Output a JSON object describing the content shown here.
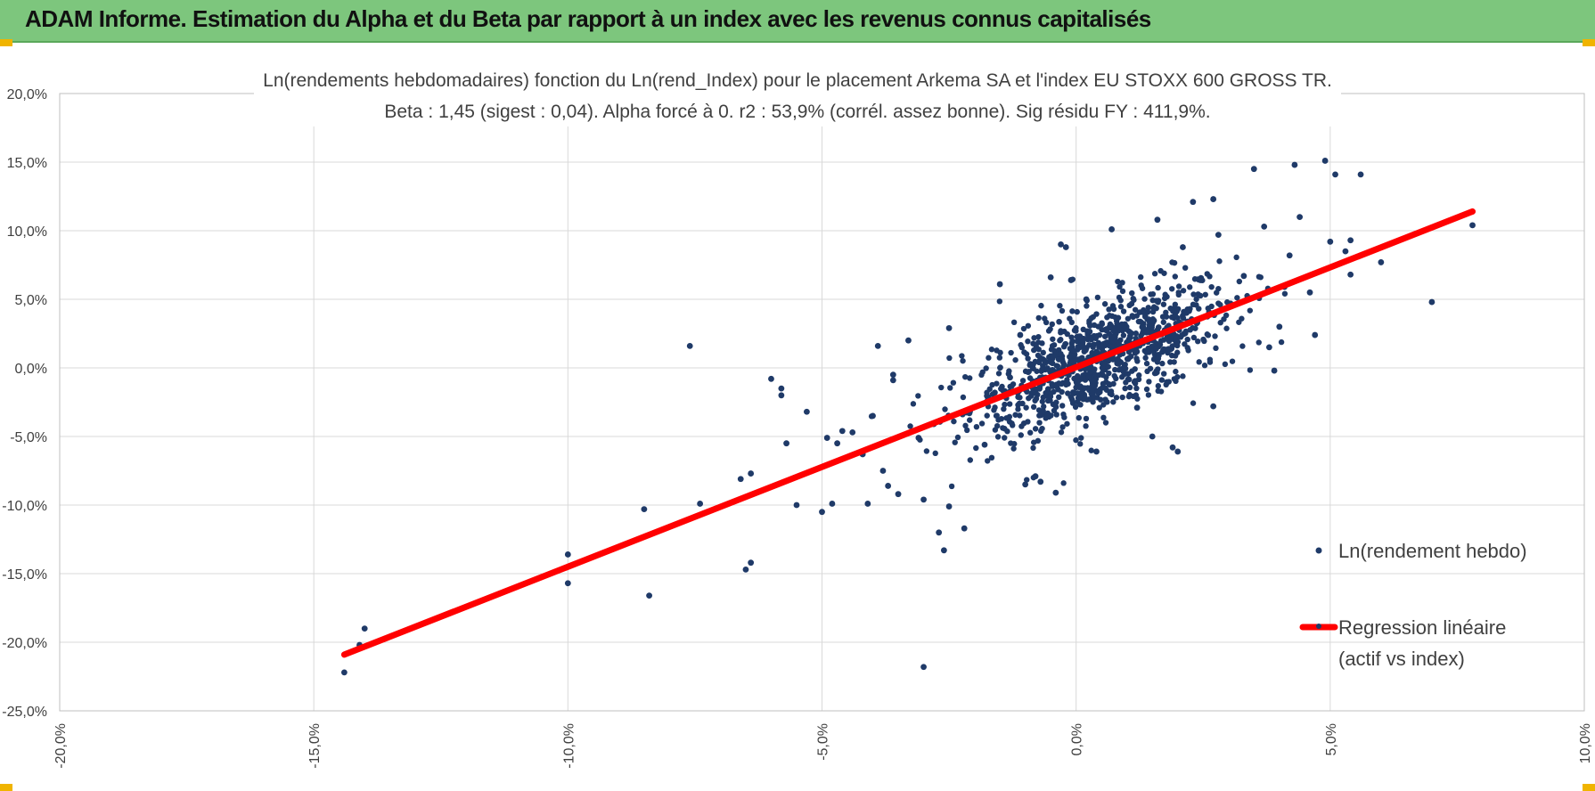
{
  "header": {
    "title": "ADAM Informe. Estimation du Alpha et du Beta par rapport à un index avec les revenus connus capitalisés"
  },
  "colors": {
    "header_bg": "#7dc67d",
    "accent": "#f0b400",
    "points": "#1f3a68",
    "regression": "#ff0000",
    "grid": "#d9d9d9"
  },
  "chart_data": {
    "type": "scatter",
    "title": "Ln(rendements hebdomadaires) fonction du Ln(rend_Index) pour le placement Arkema SA et l'index EU STOXX 600 GROSS TR.",
    "subtitle": "Beta : 1,45 (sigest : 0,04). Alpha forcé à 0. r2 : 53,9% (corrél. assez bonne). Sig résidu FY : 411,9%.",
    "xlim": [
      -0.2,
      0.1
    ],
    "ylim": [
      -0.25,
      0.2
    ],
    "x_ticks": [
      -0.2,
      -0.15,
      -0.1,
      -0.05,
      0.0,
      0.05,
      0.1
    ],
    "x_tick_labels": [
      "-20,0%",
      "-15,0%",
      "-10,0%",
      "-5,0%",
      "0,0%",
      "5,0%",
      "10,0%"
    ],
    "y_ticks": [
      0.2,
      0.15,
      0.1,
      0.05,
      0.0,
      -0.05,
      -0.1,
      -0.15,
      -0.2,
      -0.25
    ],
    "y_tick_labels": [
      "20,0%",
      "15,0%",
      "10,0%",
      "5,0%",
      "0,0%",
      "-5,0%",
      "-10,0%",
      "-15,0%",
      "-20,0%",
      "-25,0%"
    ],
    "grid": true,
    "legend_position": "right",
    "series": [
      {
        "name": "Ln(rendement hebdo)",
        "kind": "points",
        "color": "#1f3a68",
        "points": [
          [
            -0.144,
            -0.222
          ],
          [
            -0.14,
            -0.19
          ],
          [
            -0.141,
            -0.202
          ],
          [
            -0.1,
            -0.136
          ],
          [
            -0.1,
            -0.157
          ],
          [
            -0.085,
            -0.103
          ],
          [
            -0.084,
            -0.166
          ],
          [
            -0.076,
            0.016
          ],
          [
            -0.074,
            -0.099
          ],
          [
            -0.066,
            -0.081
          ],
          [
            -0.065,
            -0.147
          ],
          [
            -0.064,
            -0.142
          ],
          [
            -0.064,
            -0.077
          ],
          [
            -0.06,
            -0.008
          ],
          [
            -0.058,
            -0.015
          ],
          [
            -0.058,
            -0.02
          ],
          [
            -0.057,
            -0.055
          ],
          [
            -0.055,
            -0.1
          ],
          [
            -0.053,
            -0.032
          ],
          [
            -0.05,
            -0.105
          ],
          [
            -0.049,
            -0.051
          ],
          [
            -0.048,
            -0.099
          ],
          [
            -0.047,
            -0.055
          ],
          [
            -0.046,
            -0.046
          ],
          [
            -0.044,
            -0.047
          ],
          [
            -0.042,
            -0.063
          ],
          [
            -0.041,
            -0.099
          ],
          [
            -0.04,
            -0.035
          ],
          [
            -0.039,
            0.016
          ],
          [
            -0.038,
            -0.075
          ],
          [
            -0.037,
            -0.086
          ],
          [
            -0.036,
            -0.005
          ],
          [
            -0.036,
            -0.009
          ],
          [
            -0.035,
            -0.092
          ],
          [
            -0.033,
            0.02
          ],
          [
            -0.031,
            -0.051
          ],
          [
            -0.03,
            -0.218
          ],
          [
            -0.03,
            -0.096
          ],
          [
            -0.028,
            -0.041
          ],
          [
            -0.027,
            -0.12
          ],
          [
            -0.026,
            -0.133
          ],
          [
            -0.025,
            0.029
          ],
          [
            -0.025,
            -0.101
          ],
          [
            -0.022,
            -0.117
          ],
          [
            -0.021,
            -0.033
          ],
          [
            -0.018,
            -0.056
          ],
          [
            -0.016,
            -0.018
          ],
          [
            -0.015,
            0.061
          ],
          [
            -0.013,
            -0.007
          ],
          [
            -0.011,
            0.024
          ],
          [
            -0.01,
            -0.085
          ],
          [
            -0.008,
            -0.079
          ],
          [
            -0.007,
            -0.083
          ],
          [
            -0.005,
            0.066
          ],
          [
            -0.004,
            -0.091
          ],
          [
            -0.003,
            0.09
          ],
          [
            -0.002,
            0.088
          ],
          [
            -0.001,
            0.064
          ],
          [
            0.002,
            0.05
          ],
          [
            0.004,
            -0.061
          ],
          [
            0.007,
            0.101
          ],
          [
            0.012,
            -0.029
          ],
          [
            0.015,
            -0.05
          ],
          [
            0.016,
            0.108
          ],
          [
            0.019,
            -0.058
          ],
          [
            0.02,
            -0.061
          ],
          [
            0.021,
            0.088
          ],
          [
            0.023,
            0.121
          ],
          [
            0.027,
            0.123
          ],
          [
            0.027,
            -0.028
          ],
          [
            0.028,
            0.097
          ],
          [
            0.033,
            0.067
          ],
          [
            0.035,
            0.145
          ],
          [
            0.037,
            0.103
          ],
          [
            0.038,
            0.015
          ],
          [
            0.039,
            -0.002
          ],
          [
            0.04,
            0.03
          ],
          [
            0.041,
            0.059
          ],
          [
            0.042,
            0.082
          ],
          [
            0.043,
            0.148
          ],
          [
            0.044,
            0.11
          ],
          [
            0.046,
            0.055
          ],
          [
            0.047,
            0.024
          ],
          [
            0.049,
            0.151
          ],
          [
            0.05,
            0.092
          ],
          [
            0.051,
            0.141
          ],
          [
            0.053,
            0.085
          ],
          [
            0.054,
            0.093
          ],
          [
            0.054,
            0.068
          ],
          [
            0.056,
            0.141
          ],
          [
            0.06,
            0.077
          ],
          [
            0.07,
            0.048
          ],
          [
            0.078,
            0.104
          ]
        ]
      },
      {
        "name": "Regression linéaire (actif vs index)",
        "kind": "line",
        "color": "#ff0000",
        "points": [
          [
            -0.144,
            -0.209
          ],
          [
            0.078,
            0.114
          ]
        ]
      }
    ],
    "legend": {
      "points_label": "Ln(rendement hebdo)",
      "regression_label_line1": "Regression linéaire",
      "regression_label_line2": "(actif vs index)"
    }
  }
}
